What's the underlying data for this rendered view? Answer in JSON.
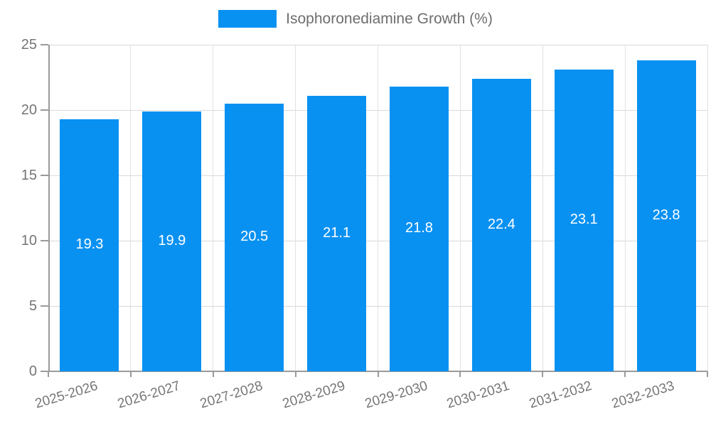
{
  "legend": {
    "label": "Isophoronediamine Growth (%)"
  },
  "chart_data": {
    "type": "bar",
    "title": "",
    "xlabel": "",
    "ylabel": "",
    "categories": [
      "2025-2026",
      "2026-2027",
      "2027-2028",
      "2028-2029",
      "2029-2030",
      "2030-2031",
      "2031-2032",
      "2032-2033"
    ],
    "series": [
      {
        "name": "Isophoronediamine Growth (%)",
        "values": [
          19.3,
          19.9,
          20.5,
          21.1,
          21.8,
          22.4,
          23.1,
          23.8
        ]
      }
    ],
    "value_labels": [
      "19.3",
      "19.9",
      "20.5",
      "21.1",
      "21.8",
      "22.4",
      "23.1",
      "23.8"
    ],
    "ylim": [
      0,
      25
    ],
    "yticks": [
      0,
      5,
      10,
      15,
      20,
      25
    ],
    "grid": "both",
    "legend_position": "top-center",
    "x_tick_rotation_deg": -17,
    "style": {
      "bar_color": "#0991f2",
      "value_label_color": "#ffffff",
      "axis_color": "#9a9a9a",
      "h_gridline_color": "#d9d9d9",
      "v_gridline_color": "#e2e2e2",
      "tick_label_color": "#757575",
      "legend_text_color": "#6e6e6e",
      "background": "#ffffff"
    }
  }
}
